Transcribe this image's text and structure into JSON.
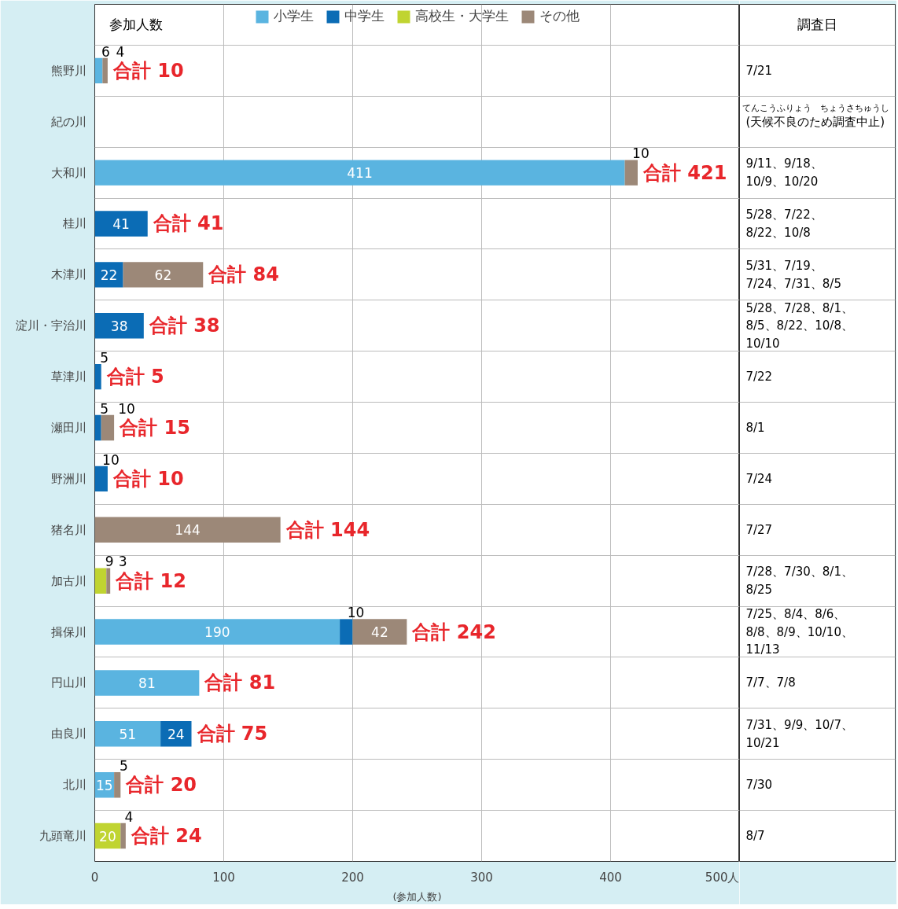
{
  "chart_data": {
    "type": "bar",
    "orientation": "horizontal",
    "stacked": true,
    "legend_title": "参加人数",
    "xlabel": "(参加人数)",
    "categories": [
      "熊野川",
      "紀の川",
      "大和川",
      "桂川",
      "木津川",
      "淀川・宇治川",
      "草津川",
      "瀬田川",
      "野洲川",
      "猪名川",
      "加古川",
      "揖保川",
      "円山川",
      "由良川",
      "北川",
      "九頭竜川"
    ],
    "series": [
      {
        "name": "小学生",
        "color": "#5ab4e0",
        "values": [
          6,
          null,
          411,
          null,
          null,
          null,
          null,
          null,
          null,
          null,
          null,
          190,
          81,
          51,
          15,
          null
        ]
      },
      {
        "name": "中学生",
        "color": "#0b6cb5",
        "values": [
          null,
          null,
          null,
          41,
          22,
          38,
          5,
          5,
          10,
          null,
          null,
          10,
          null,
          24,
          null,
          null
        ]
      },
      {
        "name": "高校生・大学生",
        "color": "#c0d431",
        "values": [
          null,
          null,
          null,
          null,
          null,
          null,
          null,
          null,
          null,
          null,
          9,
          null,
          null,
          null,
          null,
          20
        ]
      },
      {
        "name": "その他",
        "color": "#9c8878",
        "values": [
          4,
          null,
          10,
          null,
          62,
          null,
          null,
          10,
          null,
          144,
          3,
          42,
          null,
          null,
          5,
          4
        ]
      }
    ],
    "totals": [
      "合計 10",
      null,
      "合計 421",
      "合計 41",
      "合計 84",
      "合計 38",
      "合計 5",
      "合計 15",
      "合計 10",
      "合計 144",
      "合計 12",
      "合計 242",
      "合計 81",
      "合計 75",
      "合計 20",
      "合計 24"
    ],
    "data_labels": true,
    "xlim": [
      0,
      500
    ],
    "xticks": [
      0,
      100,
      200,
      300,
      400,
      {
        "value": 500,
        "label": "500人"
      }
    ],
    "grid": true,
    "legend": "top",
    "annotations": [
      "調査日",
      "7/21",
      "(天候不良のため調査中止)",
      "9/11、9/18、10/9、10/20",
      "5/28、7/22、8/22、10/8",
      "5/31、7/19、7/24、7/31、8/5",
      "5/28、7/28、8/1、8/5、8/22、10/8、10/10",
      "7/22",
      "8/1",
      "7/24",
      "7/27",
      "7/28、7/30、8/1、8/25",
      "7/25、8/4、8/6、8/8、8/9、10/10、11/13",
      "7/7、7/8",
      "7/31、9/9、10/7、10/21",
      "7/30",
      "8/7",
      "てんこうふりょう",
      "ちょうさちゅうし"
    ]
  }
}
